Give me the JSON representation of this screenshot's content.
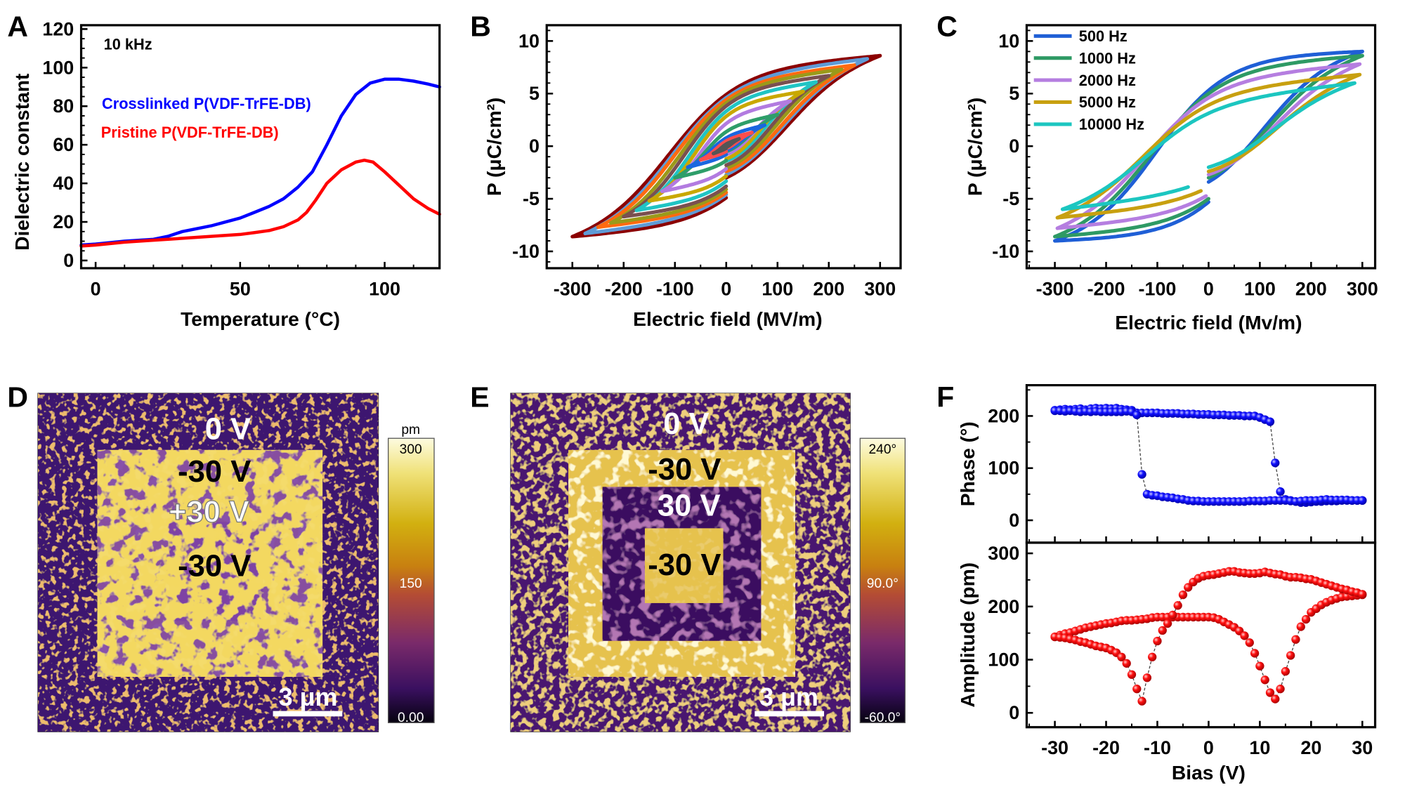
{
  "chart_data": [
    {
      "panel": "A",
      "type": "line",
      "xlabel": "Temperature (°C)",
      "ylabel": "Dielectric constant",
      "xlim": [
        -5,
        119
      ],
      "ylim": [
        -4,
        122
      ],
      "xticks": [
        0,
        50,
        100
      ],
      "yticks": [
        0,
        20,
        40,
        60,
        80,
        100,
        120
      ],
      "annotation": "10 kHz",
      "series": [
        {
          "name": "Crosslinked P(VDF-TrFE-DB)",
          "color": "#0000ff",
          "x": [
            -5,
            0,
            10,
            20,
            25,
            28,
            30,
            35,
            40,
            45,
            50,
            55,
            60,
            65,
            70,
            75,
            80,
            85,
            90,
            95,
            100,
            105,
            110,
            115,
            119
          ],
          "y": [
            8,
            8.5,
            10,
            11,
            12.5,
            14,
            15,
            16.5,
            18,
            20,
            22,
            25,
            28,
            32,
            38,
            46,
            60,
            75,
            86,
            92,
            94,
            94,
            93,
            91.5,
            90
          ]
        },
        {
          "name": "Pristine P(VDF-TrFE-DB)",
          "color": "#ff0000",
          "x": [
            -5,
            0,
            10,
            20,
            30,
            40,
            50,
            55,
            60,
            65,
            70,
            73,
            76,
            80,
            85,
            90,
            93,
            96,
            100,
            105,
            110,
            115,
            119
          ],
          "y": [
            7.5,
            8,
            9.5,
            10.5,
            11.5,
            12.5,
            13.5,
            14.5,
            15.5,
            17.5,
            21,
            25,
            31,
            40,
            47,
            51,
            52,
            51,
            46,
            39,
            32,
            27,
            24
          ]
        }
      ]
    },
    {
      "panel": "B",
      "type": "line",
      "xlabel": "Electric field (MV/m)",
      "ylabel": "P (μC/cm²)",
      "xlim": [
        -350,
        340
      ],
      "ylim": [
        -11.6,
        11.5
      ],
      "xticks": [
        -300,
        -200,
        -100,
        0,
        100,
        200,
        300
      ],
      "yticks": [
        -10,
        -5,
        0,
        5,
        10
      ],
      "loops": [
        {
          "E_max": 25,
          "P_max": 0.7,
          "P_r": 0.2,
          "E_c": 10,
          "P_start": -0.1,
          "color": "#555555"
        },
        {
          "E_max": 50,
          "P_max": 1.3,
          "P_r": 0.5,
          "E_c": 20,
          "P_start": -0.2,
          "color": "#ff4d4d"
        },
        {
          "E_max": 75,
          "P_max": 2.0,
          "P_r": 0.8,
          "E_c": 30,
          "P_start": -0.4,
          "color": "#1a66e0"
        },
        {
          "E_max": 100,
          "P_max": 3.0,
          "P_r": 1.4,
          "E_c": 40,
          "P_start": -0.5,
          "color": "#2e9e6a"
        },
        {
          "E_max": 125,
          "P_max": 4.3,
          "P_r": 2.2,
          "E_c": 50,
          "P_start": -0.8,
          "color": "#b27be0"
        },
        {
          "E_max": 150,
          "P_max": 5.2,
          "P_r": 2.9,
          "E_c": 60,
          "P_start": -1.2,
          "color": "#c9a800"
        },
        {
          "E_max": 175,
          "P_max": 6.1,
          "P_r": 3.4,
          "E_c": 70,
          "P_start": -1.4,
          "color": "#20c4c4"
        },
        {
          "E_max": 200,
          "P_max": 6.7,
          "P_r": 3.9,
          "E_c": 80,
          "P_start": -1.8,
          "color": "#7a5050"
        },
        {
          "E_max": 225,
          "P_max": 7.3,
          "P_r": 4.2,
          "E_c": 90,
          "P_start": -2.1,
          "color": "#9a9a1a"
        },
        {
          "E_max": 250,
          "P_max": 7.7,
          "P_r": 4.5,
          "E_c": 100,
          "P_start": -2.4,
          "color": "#ff6a10"
        },
        {
          "E_max": 275,
          "P_max": 8.3,
          "P_r": 4.7,
          "E_c": 105,
          "P_start": -2.7,
          "color": "#5f9bd6"
        },
        {
          "E_max": 300,
          "P_max": 8.6,
          "P_r": 5.0,
          "E_c": 110,
          "P_start": -3.0,
          "color": "#8b0000"
        }
      ]
    },
    {
      "panel": "C",
      "type": "line",
      "xlabel": "Electric field (Mv/m)",
      "ylabel": "P (μC/cm²)",
      "xlim": [
        -355,
        325
      ],
      "ylim": [
        -11.6,
        11.5
      ],
      "xticks": [
        -300,
        -200,
        -100,
        0,
        100,
        200,
        300
      ],
      "yticks": [
        -10,
        -5,
        0,
        5,
        10
      ],
      "legend": "top-left",
      "loops": [
        {
          "name": "500 Hz",
          "E_max": 300,
          "P_max": 9.0,
          "P_r": 5.4,
          "E_c": 100,
          "P_start": -3.4,
          "E_end": 0,
          "color": "#1f5fd6"
        },
        {
          "name": "1000 Hz",
          "E_max": 300,
          "P_max": 8.6,
          "P_r": 5.1,
          "E_c": 110,
          "P_start": -3.0,
          "E_end": 0,
          "color": "#2e9a64"
        },
        {
          "name": "2000 Hz",
          "E_max": 295,
          "P_max": 7.8,
          "P_r": 4.7,
          "E_c": 120,
          "P_start": -2.7,
          "E_end": -5,
          "color": "#b57ee0"
        },
        {
          "name": "5000 Hz",
          "E_max": 295,
          "P_max": 6.8,
          "P_r": 4.0,
          "E_c": 125,
          "P_start": -2.4,
          "E_end": -15,
          "color": "#c8a010"
        },
        {
          "name": "10000 Hz",
          "E_max": 285,
          "P_max": 6.0,
          "P_r": 3.2,
          "E_c": 120,
          "P_start": -2.0,
          "E_end": -40,
          "color": "#1cc6c0"
        }
      ]
    },
    {
      "panel": "D",
      "type": "heatmap",
      "labels": [
        "0 V",
        "-30 V",
        "+30 V",
        "-30 V"
      ],
      "scale_bar": "3 μm",
      "colorbar": {
        "unit": "pm",
        "ticks": [
          "300",
          "150",
          "0.00"
        ],
        "range": [
          0,
          300
        ]
      }
    },
    {
      "panel": "E",
      "type": "heatmap",
      "labels": [
        "0 V",
        "-30 V",
        "30 V",
        "-30 V"
      ],
      "scale_bar": "3 μm",
      "colorbar": {
        "ticks": [
          "240°",
          "90.0°",
          "-60.0°"
        ],
        "range": [
          -60,
          240
        ]
      }
    },
    {
      "panel": "F",
      "type": "scatter",
      "xlabel": "Bias (V)",
      "xlim": [
        -35.5,
        32.5
      ],
      "xticks": [
        -30,
        -20,
        -10,
        0,
        10,
        20,
        30
      ],
      "bias": [
        -30,
        -29,
        -28,
        -27,
        -26,
        -25,
        -24,
        -23,
        -22,
        -21,
        -20,
        -19,
        -18,
        -17,
        -16,
        -15,
        -14,
        -13,
        -12,
        -11,
        -10,
        -9,
        -8,
        -7,
        -6,
        -5,
        -4,
        -3,
        -2,
        -1,
        0,
        1,
        2,
        3,
        4,
        5,
        6,
        7,
        8,
        9,
        10,
        11,
        12,
        13,
        14,
        15,
        16,
        17,
        18,
        19,
        20,
        21,
        22,
        23,
        24,
        25,
        26,
        27,
        28,
        29,
        30
      ],
      "subplots": [
        {
          "ylabel": "Phase (°)",
          "ylim": [
            -43,
            259
          ],
          "yticks": [
            0,
            100,
            200
          ],
          "color": "#1010ff",
          "forward": [
            211,
            212,
            213,
            212,
            213,
            214,
            212,
            214,
            215,
            214,
            215,
            214,
            215,
            213,
            212,
            211,
            206,
            206,
            206,
            206,
            206,
            205,
            205,
            205,
            205,
            204,
            204,
            204,
            203,
            203,
            203,
            202,
            202,
            202,
            201,
            201,
            201,
            200,
            200,
            200,
            197,
            193,
            189,
            110,
            55,
            40,
            38,
            36,
            34,
            34,
            35,
            36,
            36,
            37,
            37,
            37,
            38,
            38,
            38,
            38,
            38
          ],
          "reverse": [
            210,
            210,
            209,
            210,
            209,
            208,
            209,
            208,
            209,
            208,
            208,
            208,
            208,
            208,
            209,
            208,
            202,
            88,
            50,
            48,
            47,
            45,
            44,
            43,
            41,
            40,
            38,
            37,
            37,
            36,
            36,
            36,
            36,
            36,
            36,
            36,
            36,
            36,
            37,
            37,
            37,
            37,
            38,
            38,
            38,
            38,
            37,
            36,
            37,
            38,
            38,
            38,
            39,
            40,
            39,
            39,
            39,
            39,
            38,
            38,
            38
          ]
        },
        {
          "ylabel": "Amplitude (pm)",
          "ylim": [
            -27,
            320
          ],
          "yticks": [
            0,
            100,
            200,
            300
          ],
          "color": "#ff1010",
          "forward": [
            143,
            146,
            149,
            151,
            154,
            157,
            160,
            162,
            164,
            166,
            168,
            169,
            171,
            173,
            174,
            174,
            175,
            176,
            177,
            179,
            180,
            180,
            180,
            180,
            180,
            180,
            180,
            180,
            180,
            180,
            180,
            179,
            176,
            171,
            166,
            161,
            154,
            145,
            132,
            112,
            88,
            62,
            38,
            26,
            45,
            78,
            108,
            138,
            162,
            176,
            189,
            196,
            203,
            208,
            212,
            215,
            218,
            219,
            220,
            221,
            222
          ],
          "reverse": [
            143,
            142,
            141,
            139,
            137,
            134,
            132,
            129,
            126,
            124,
            122,
            118,
            113,
            105,
            93,
            72,
            45,
            22,
            66,
            105,
            135,
            155,
            168,
            184,
            202,
            222,
            236,
            246,
            253,
            257,
            259,
            260,
            262,
            264,
            266,
            266,
            264,
            263,
            262,
            262,
            263,
            265,
            263,
            261,
            260,
            257,
            255,
            255,
            254,
            252,
            251,
            248,
            245,
            242,
            239,
            236,
            233,
            231,
            228,
            226,
            223
          ]
        }
      ]
    }
  ]
}
